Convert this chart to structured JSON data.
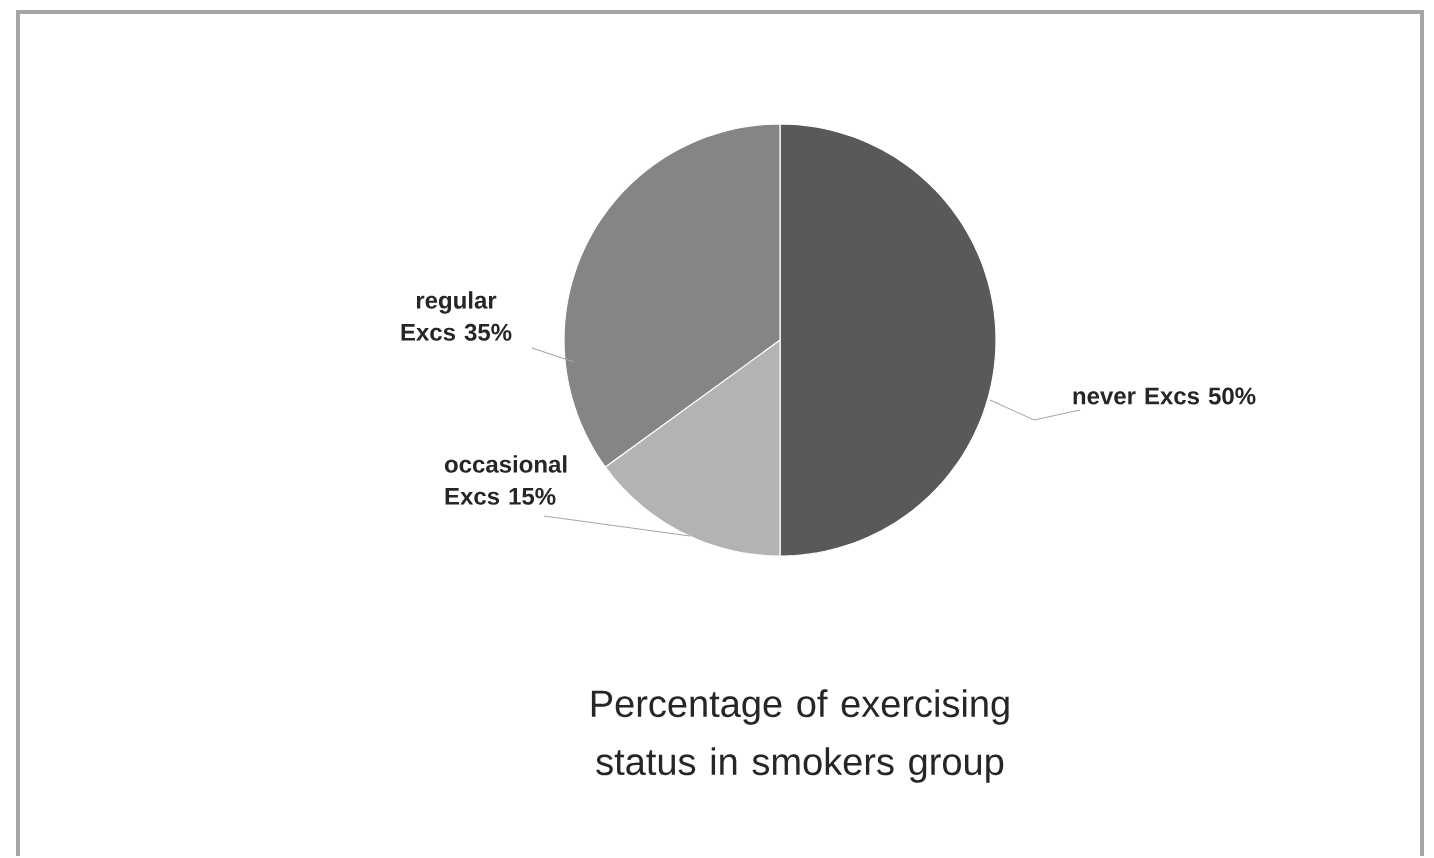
{
  "chart_data": {
    "type": "pie",
    "title": "Percentage of exercising status in smokers group",
    "categories": [
      "never Excs",
      "occasional Excs",
      "regular Excs"
    ],
    "values": [
      50,
      15,
      35
    ],
    "value_labels": [
      "50%",
      "15%",
      "35%"
    ],
    "colors": [
      "#595959",
      "#b3b3b3",
      "#858585"
    ]
  }
}
